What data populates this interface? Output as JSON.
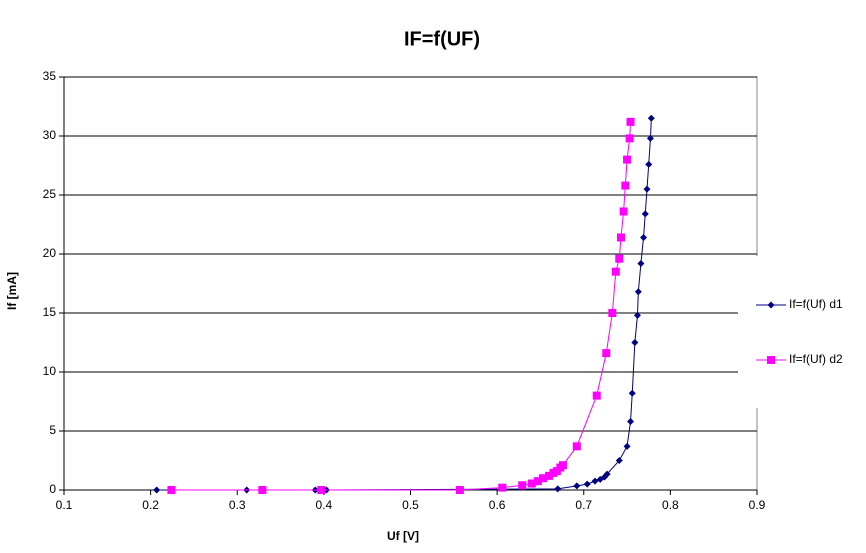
{
  "chart_data": {
    "type": "scatter",
    "title": "IF=f(UF)",
    "x_label": "Uf [V]",
    "y_label": "If [mA]",
    "xlim": [
      0.1,
      0.9
    ],
    "xticks": [
      0.1,
      0.2,
      0.3,
      0.4,
      0.5,
      0.6,
      0.7,
      0.8,
      0.9
    ],
    "ylim": [
      0,
      35
    ],
    "yticks": [
      0,
      5,
      10,
      15,
      20,
      25,
      30,
      35
    ],
    "grid": true,
    "legend": "right",
    "series": [
      {
        "name": "If=f(Uf) d1",
        "color": "#000080",
        "marker": "diamond",
        "x": [
          0.207,
          0.311,
          0.39,
          0.397,
          0.403,
          0.67,
          0.692,
          0.704,
          0.713,
          0.719,
          0.724,
          0.727,
          0.741,
          0.75,
          0.754,
          0.756,
          0.759,
          0.762,
          0.763,
          0.766,
          0.769,
          0.771,
          0.773,
          0.775,
          0.777,
          0.778
        ],
        "values": [
          0,
          0,
          0,
          0,
          0,
          0.1,
          0.35,
          0.5,
          0.75,
          0.9,
          1.1,
          1.35,
          2.5,
          3.7,
          5.8,
          8.2,
          12.5,
          14.8,
          16.8,
          19.2,
          21.4,
          23.4,
          25.5,
          27.6,
          29.8,
          31.5
        ]
      },
      {
        "name": "If=f(Uf) d2",
        "color": "#ff00ff",
        "marker": "square",
        "x": [
          0.224,
          0.329,
          0.397,
          0.557,
          0.606,
          0.629,
          0.64,
          0.647,
          0.653,
          0.66,
          0.665,
          0.669,
          0.673,
          0.676,
          0.692,
          0.715,
          0.726,
          0.733,
          0.737,
          0.741,
          0.743,
          0.746,
          0.748,
          0.75,
          0.753,
          0.754
        ],
        "values": [
          0,
          0,
          0,
          0,
          0.2,
          0.4,
          0.55,
          0.75,
          1.0,
          1.2,
          1.45,
          1.6,
          1.9,
          2.1,
          3.7,
          8.0,
          11.6,
          15.0,
          18.5,
          19.6,
          21.4,
          23.6,
          25.8,
          28.0,
          29.8,
          31.2
        ]
      }
    ]
  }
}
